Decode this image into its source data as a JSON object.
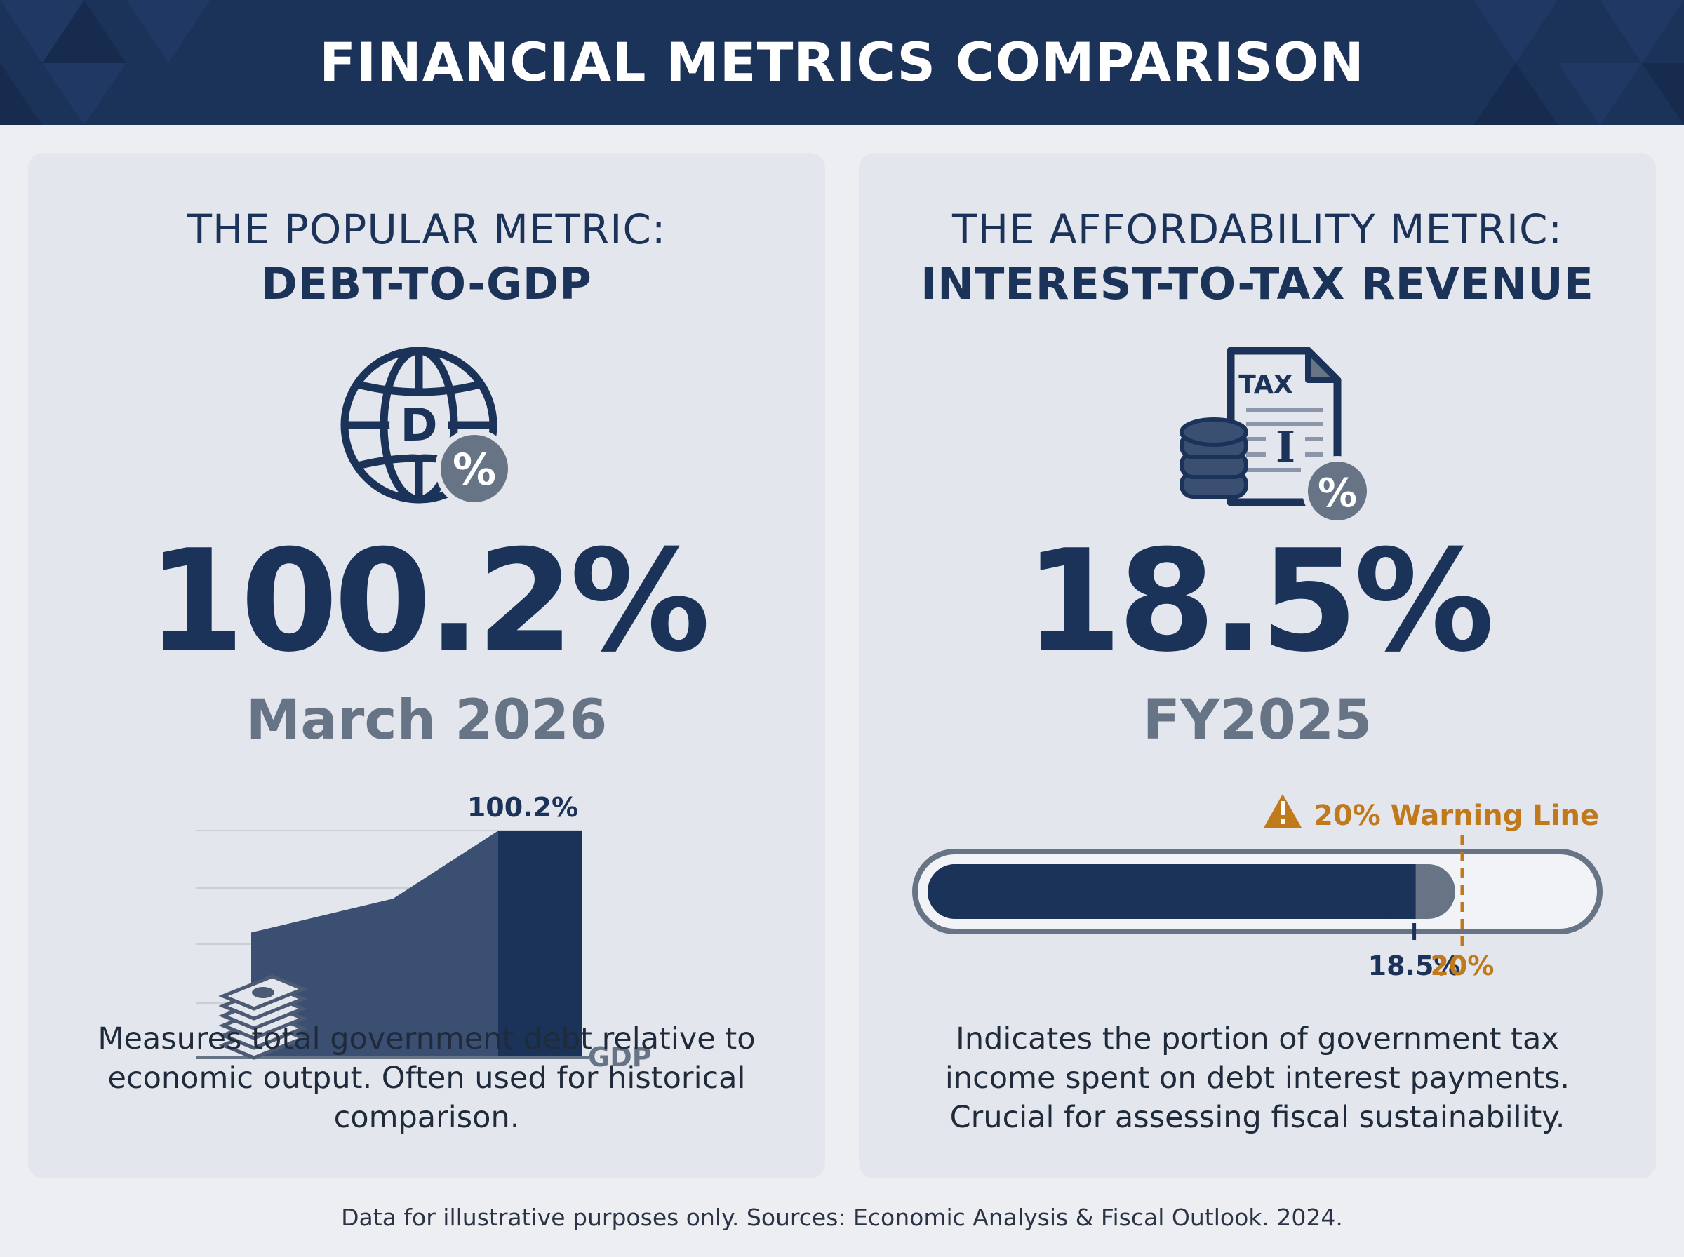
{
  "header": {
    "title": "FINANCIAL METRICS COMPARISON"
  },
  "colors": {
    "navy": "#1b3259",
    "slate": "#667485",
    "warning": "#c07a1c",
    "card_bg": "#e3e6ec",
    "page_bg": "#eceef2"
  },
  "left_card": {
    "subtitle": "THE POPULAR METRIC:",
    "metric_name": "DEBT-TO-GDP",
    "icon": "globe-debt-percent-icon",
    "icon_letter": "D",
    "value": "100.2%",
    "period": "March 2026",
    "description": "Measures total government debt relative to economic output. Often used for historical comparison."
  },
  "right_card": {
    "subtitle": "THE AFFORDABILITY METRIC:",
    "metric_name": "INTEREST-TO-TAX REVENUE",
    "icon": "tax-document-coins-percent-icon",
    "icon_label": "TAX",
    "icon_letter": "I",
    "value": "18.5%",
    "period": "FY2025",
    "description": "Indicates the portion of government tax income spent on debt interest payments. Crucial for assessing fiscal sustainability."
  },
  "chart_data": [
    {
      "type": "area",
      "title": "",
      "series": [
        {
          "values": [
            55,
            70,
            100.2
          ]
        }
      ],
      "data_label": "100.2%",
      "x_axis_label": "GDP",
      "icon": "money-stack-icon"
    },
    {
      "type": "bar",
      "title": "",
      "values": [
        18.5
      ],
      "max": 25,
      "value_label": "18.5%",
      "threshold": {
        "value": 20,
        "label": "20%",
        "caption": "20% Warning Line",
        "icon": "warning-triangle-icon"
      }
    }
  ],
  "footer": {
    "note": "Data for illustrative purposes only. Sources: Economic Analysis & Fiscal Outlook. 2024."
  }
}
